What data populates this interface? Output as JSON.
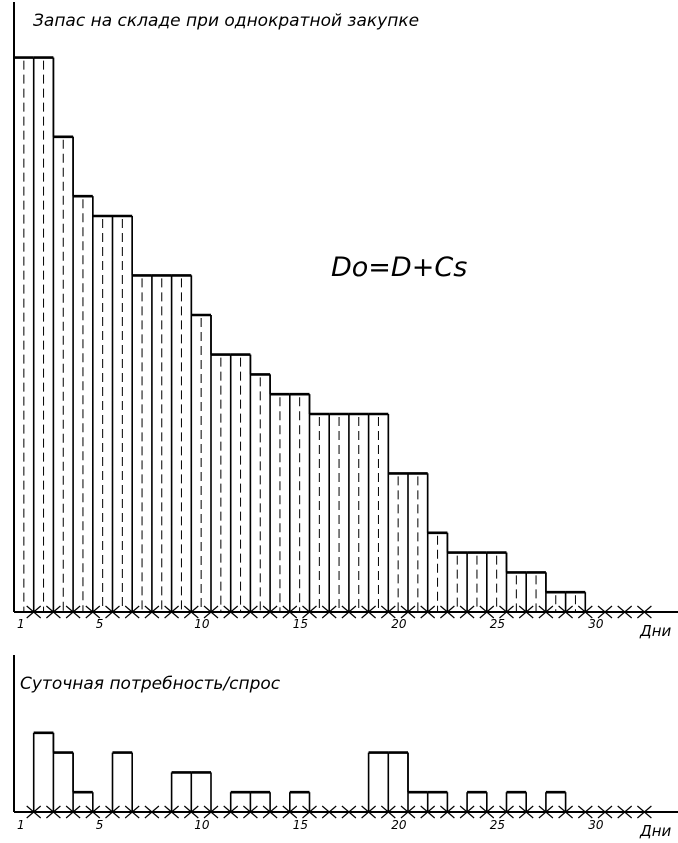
{
  "chart_data": [
    {
      "type": "bar",
      "title": "Запас на складе при однократной закупке",
      "annotation": "Do=D+Cs",
      "xlabel": "Дни",
      "x_tick_labels": [
        "1",
        "5",
        "10",
        "15",
        "20",
        "25",
        "30"
      ],
      "x_tick_days": [
        1,
        5,
        10,
        15,
        20,
        25,
        30
      ],
      "days": [
        1,
        2,
        3,
        4,
        5,
        6,
        7,
        8,
        9,
        10,
        11,
        12,
        13,
        14,
        15,
        16,
        17,
        18,
        19,
        20,
        21,
        22,
        23,
        24,
        25,
        26,
        27,
        28,
        29,
        30,
        31,
        32
      ],
      "values": [
        28,
        28,
        24,
        21,
        20,
        20,
        17,
        17,
        17,
        15,
        13,
        13,
        12,
        11,
        11,
        10,
        10,
        10,
        10,
        7,
        7,
        4,
        3,
        3,
        3,
        2,
        2,
        1,
        1,
        0,
        0,
        0
      ],
      "ylim": [
        0,
        28
      ]
    },
    {
      "type": "bar",
      "title": "Суточная потребность/спрос",
      "xlabel": "Дни",
      "x_tick_labels": [
        "1",
        "5",
        "10",
        "15",
        "20",
        "25",
        "30"
      ],
      "x_tick_days": [
        1,
        5,
        10,
        15,
        20,
        25,
        30
      ],
      "days": [
        1,
        2,
        3,
        4,
        5,
        6,
        7,
        8,
        9,
        10,
        11,
        12,
        13,
        14,
        15,
        16,
        17,
        18,
        19,
        20,
        21,
        22,
        23,
        24,
        25,
        26,
        27,
        28,
        29,
        30,
        31,
        32
      ],
      "values": [
        0,
        4,
        3,
        1,
        0,
        3,
        0,
        0,
        2,
        2,
        0,
        1,
        1,
        0,
        1,
        0,
        0,
        0,
        3,
        3,
        1,
        1,
        0,
        1,
        0,
        1,
        0,
        1,
        0,
        0,
        0,
        0
      ],
      "ylim": [
        0,
        4
      ]
    }
  ]
}
